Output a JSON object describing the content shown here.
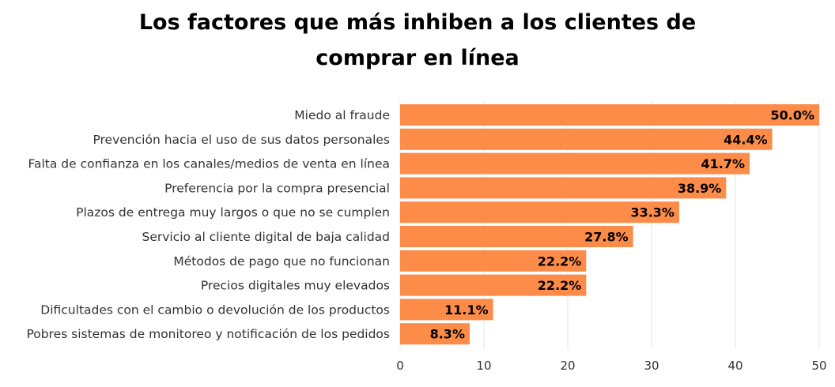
{
  "title_lines": [
    "Los factores que más inhiben a los clientes de",
    "comprar en línea"
  ],
  "colors": {
    "bar": "#fd8c49",
    "grid": "#e6e6e6",
    "label_text": "#333333",
    "value_text": "#000000",
    "tick_text": "#333333"
  },
  "chart_data": {
    "type": "bar",
    "orientation": "horizontal",
    "title": "Los factores que más inhiben a los clientes de comprar en línea",
    "xlabel": "",
    "ylabel": "",
    "xlim": [
      0,
      50
    ],
    "x_ticks": [
      0,
      10,
      20,
      30,
      40,
      50
    ],
    "grid": true,
    "legend": "none",
    "categories": [
      "Miedo al fraude",
      "Prevención hacia el uso de sus datos personales",
      "Falta de confianza en los canales/medios de venta en línea",
      "Preferencia por la compra presencial",
      "Plazos de entrega muy largos o que no se cumplen",
      "Servicio al cliente digital de baja calidad",
      "Métodos de pago que no funcionan",
      "Precios digitales muy elevados",
      "Dificultades con el cambio o devolución de los productos",
      "Pobres sistemas de monitoreo y notificación de los pedidos"
    ],
    "values": [
      50.0,
      44.4,
      41.7,
      38.9,
      33.3,
      27.8,
      22.2,
      22.2,
      11.1,
      8.3
    ],
    "value_labels": [
      "50.0%",
      "44.4%",
      "41.7%",
      "38.9%",
      "33.3%",
      "27.8%",
      "22.2%",
      "22.2%",
      "11.1%",
      "8.3%"
    ]
  }
}
